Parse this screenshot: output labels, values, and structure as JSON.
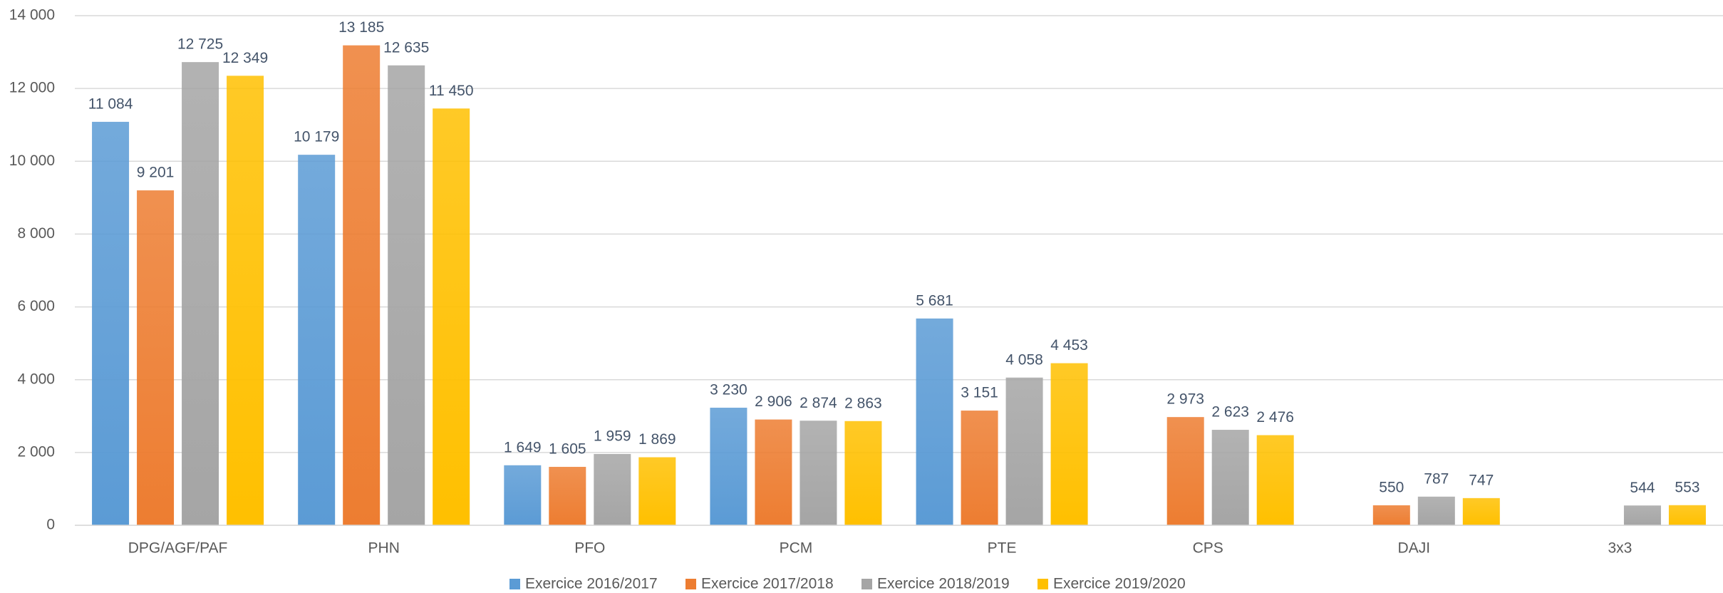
{
  "chart_data": {
    "type": "bar",
    "categories": [
      "DPG/AGF/PAF",
      "PHN",
      "PFO",
      "PCM",
      "PTE",
      "CPS",
      "DAJI",
      "3x3"
    ],
    "series": [
      {
        "name": "Exercice 2016/2017",
        "color": "#5b9bd5",
        "values": [
          11084,
          10179,
          1649,
          3230,
          5681,
          null,
          null,
          null
        ],
        "value_labels": [
          "11 084",
          "10 179",
          "1 649",
          "3 230",
          "5 681",
          null,
          null,
          null
        ]
      },
      {
        "name": "Exercice 2017/2018",
        "color": "#ed7d31",
        "values": [
          9201,
          13185,
          1605,
          2906,
          3151,
          2973,
          550,
          null
        ],
        "value_labels": [
          "9 201",
          "13 185",
          "1 605",
          "2 906",
          "3 151",
          "2 973",
          "550",
          null
        ]
      },
      {
        "name": "Exercice 2018/2019",
        "color": "#a5a5a5",
        "values": [
          12725,
          12635,
          1959,
          2874,
          4058,
          2623,
          787,
          544
        ],
        "value_labels": [
          "12 725",
          "12 635",
          "1 959",
          "2 874",
          "4 058",
          "2 623",
          "787",
          "544"
        ]
      },
      {
        "name": "Exercice 2019/2020",
        "color": "#ffc000",
        "values": [
          12349,
          11450,
          1869,
          2863,
          4453,
          2476,
          747,
          553
        ],
        "value_labels": [
          "12 349",
          "11 450",
          "1 869",
          "2 863",
          "4 453",
          "2 476",
          "747",
          "553"
        ]
      }
    ],
    "ylim": [
      0,
      14000
    ],
    "yticks": [
      0,
      {
        "value": 2000,
        "label": "2 000"
      },
      {
        "value": 4000,
        "label": "4 000"
      },
      {
        "value": 6000,
        "label": "6 000"
      },
      {
        "value": 8000,
        "label": "8 000"
      },
      {
        "value": 10000,
        "label": "10 000"
      },
      {
        "value": 12000,
        "label": "12 000"
      },
      {
        "value": 14000,
        "label": "14 000"
      }
    ],
    "grid": true,
    "legend": "bottom"
  }
}
